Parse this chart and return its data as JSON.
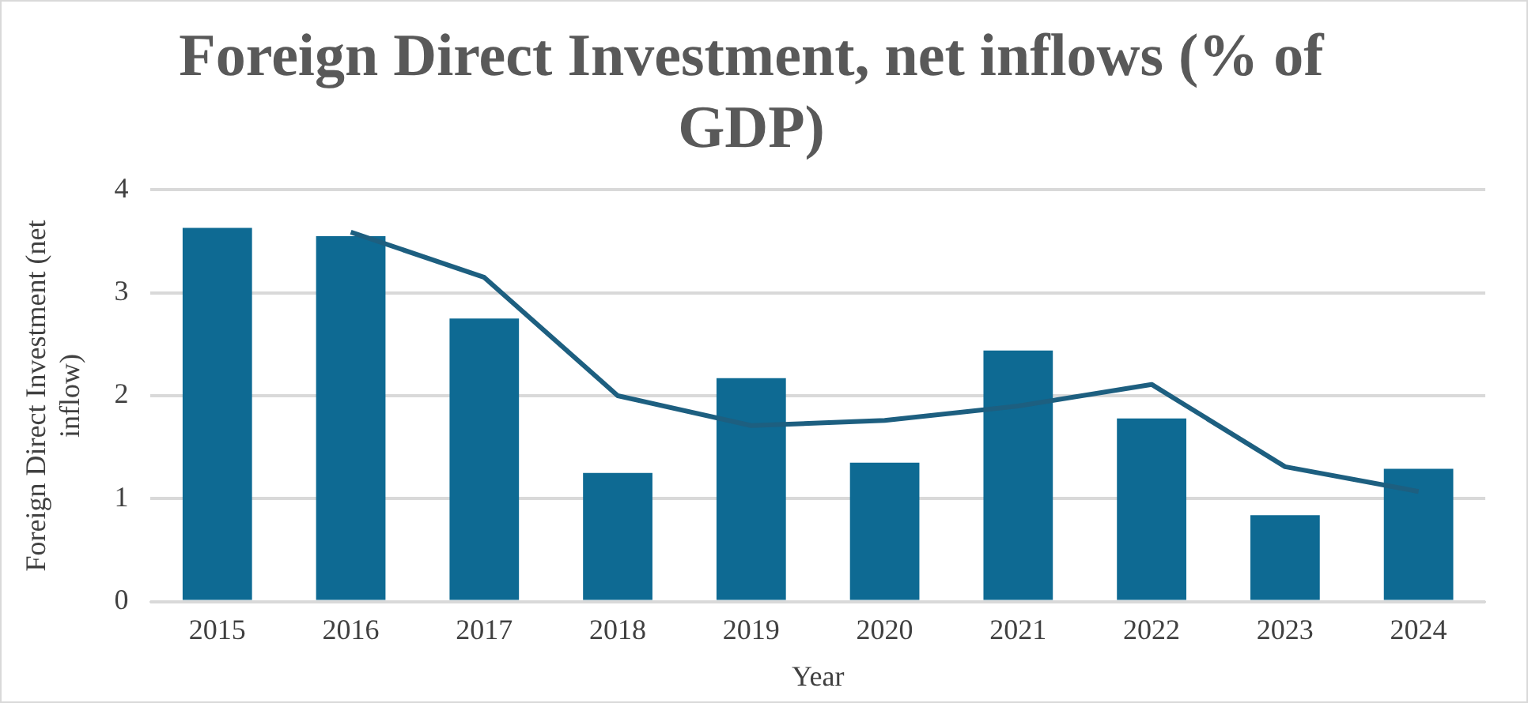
{
  "chart_data": {
    "type": "bar",
    "title": "Foreign Direct Investment, net inflows (% of GDP)",
    "xlabel": "Year",
    "ylabel": "Foreign Direct Investment (net inflow)",
    "categories": [
      "2015",
      "2016",
      "2017",
      "2018",
      "2019",
      "2020",
      "2021",
      "2022",
      "2023",
      "2024"
    ],
    "series": [
      {
        "color": "#0e6a93",
        "values": [
          3.63,
          3.55,
          2.75,
          1.25,
          2.17,
          1.35,
          2.44,
          1.78,
          0.84,
          1.29
        ]
      },
      {
        "type": "line",
        "color": "#1d5f80",
        "values": [
          null,
          3.59,
          3.15,
          2.0,
          1.71,
          1.76,
          1.9,
          2.11,
          1.31,
          1.07
        ]
      }
    ],
    "ylim": [
      0,
      4
    ],
    "yticks": [
      0,
      1,
      2,
      3,
      4
    ],
    "grid": "y",
    "legend": false,
    "marker": "none"
  }
}
